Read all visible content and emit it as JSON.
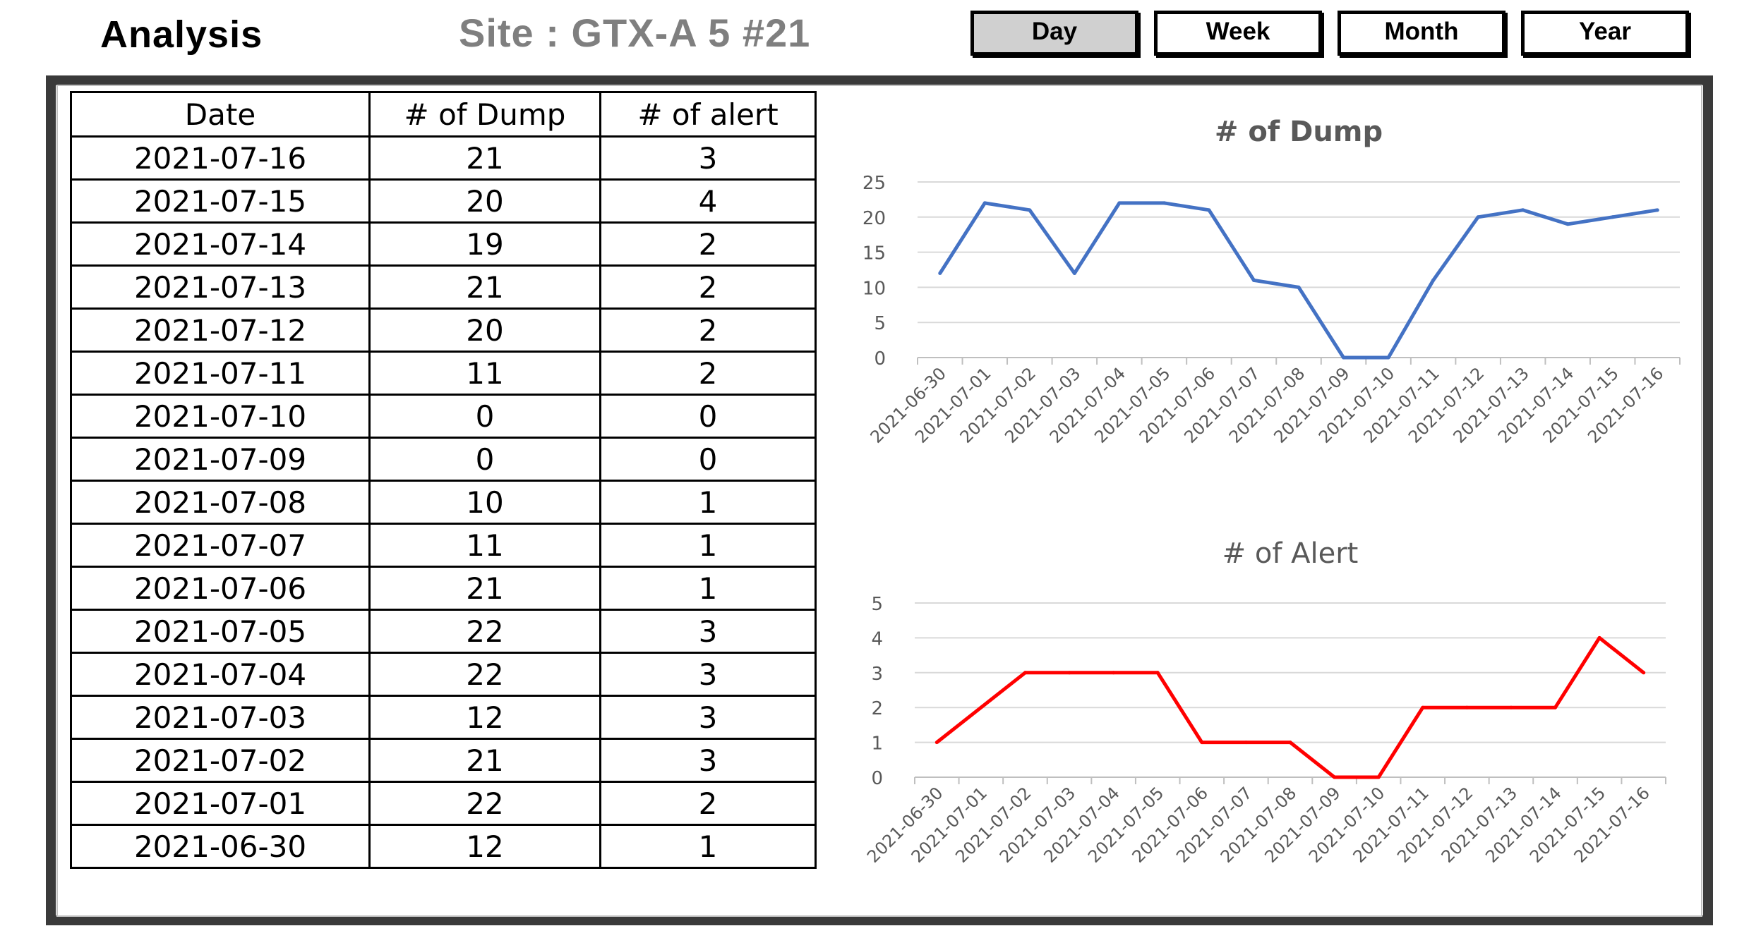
{
  "header": {
    "app_title": "Analysis",
    "site_title": "Site : GTX-A 5 #21",
    "buttons": [
      {
        "label": "Day",
        "active": true
      },
      {
        "label": "Week",
        "active": false
      },
      {
        "label": "Month",
        "active": false
      },
      {
        "label": "Year",
        "active": false
      }
    ]
  },
  "table": {
    "columns": [
      "Date",
      "# of Dump",
      "# of alert"
    ],
    "rows": [
      [
        "2021-07-16",
        "21",
        "3"
      ],
      [
        "2021-07-15",
        "20",
        "4"
      ],
      [
        "2021-07-14",
        "19",
        "2"
      ],
      [
        "2021-07-13",
        "21",
        "2"
      ],
      [
        "2021-07-12",
        "20",
        "2"
      ],
      [
        "2021-07-11",
        "11",
        "2"
      ],
      [
        "2021-07-10",
        "0",
        "0"
      ],
      [
        "2021-07-09",
        "0",
        "0"
      ],
      [
        "2021-07-08",
        "10",
        "1"
      ],
      [
        "2021-07-07",
        "11",
        "1"
      ],
      [
        "2021-07-06",
        "21",
        "1"
      ],
      [
        "2021-07-05",
        "22",
        "3"
      ],
      [
        "2021-07-04",
        "22",
        "3"
      ],
      [
        "2021-07-03",
        "12",
        "3"
      ],
      [
        "2021-07-02",
        "21",
        "3"
      ],
      [
        "2021-07-01",
        "22",
        "2"
      ],
      [
        "2021-06-30",
        "12",
        "1"
      ]
    ]
  },
  "colors": {
    "dump_line": "#4472c4",
    "alert_line": "#ff0000",
    "active_button": "#d0d0d0",
    "frame": "#3a3a3a"
  },
  "chart_data": [
    {
      "type": "line",
      "title": "# of Dump",
      "x": [
        "2021-06-30",
        "2021-07-01",
        "2021-07-02",
        "2021-07-03",
        "2021-07-04",
        "2021-07-05",
        "2021-07-06",
        "2021-07-07",
        "2021-07-08",
        "2021-07-09",
        "2021-07-10",
        "2021-07-11",
        "2021-07-12",
        "2021-07-13",
        "2021-07-14",
        "2021-07-15",
        "2021-07-16"
      ],
      "series": [
        {
          "values": [
            12,
            22,
            21,
            12,
            22,
            22,
            21,
            11,
            10,
            0,
            0,
            11,
            20,
            21,
            19,
            20,
            21
          ]
        }
      ],
      "ylim": [
        0,
        25
      ],
      "yticks": [
        0,
        5,
        10,
        15,
        20,
        25
      ],
      "grid": true
    },
    {
      "type": "line",
      "title": "# of Alert",
      "x": [
        "2021-06-30",
        "2021-07-01",
        "2021-07-02",
        "2021-07-03",
        "2021-07-04",
        "2021-07-05",
        "2021-07-06",
        "2021-07-07",
        "2021-07-08",
        "2021-07-09",
        "2021-07-10",
        "2021-07-11",
        "2021-07-12",
        "2021-07-13",
        "2021-07-14",
        "2021-07-15",
        "2021-07-16"
      ],
      "series": [
        {
          "values": [
            1,
            2,
            3,
            3,
            3,
            3,
            1,
            1,
            1,
            0,
            0,
            2,
            2,
            2,
            2,
            4,
            3
          ]
        }
      ],
      "ylim": [
        0,
        5
      ],
      "yticks": [
        0,
        1,
        2,
        3,
        4,
        5
      ],
      "grid": true
    }
  ]
}
